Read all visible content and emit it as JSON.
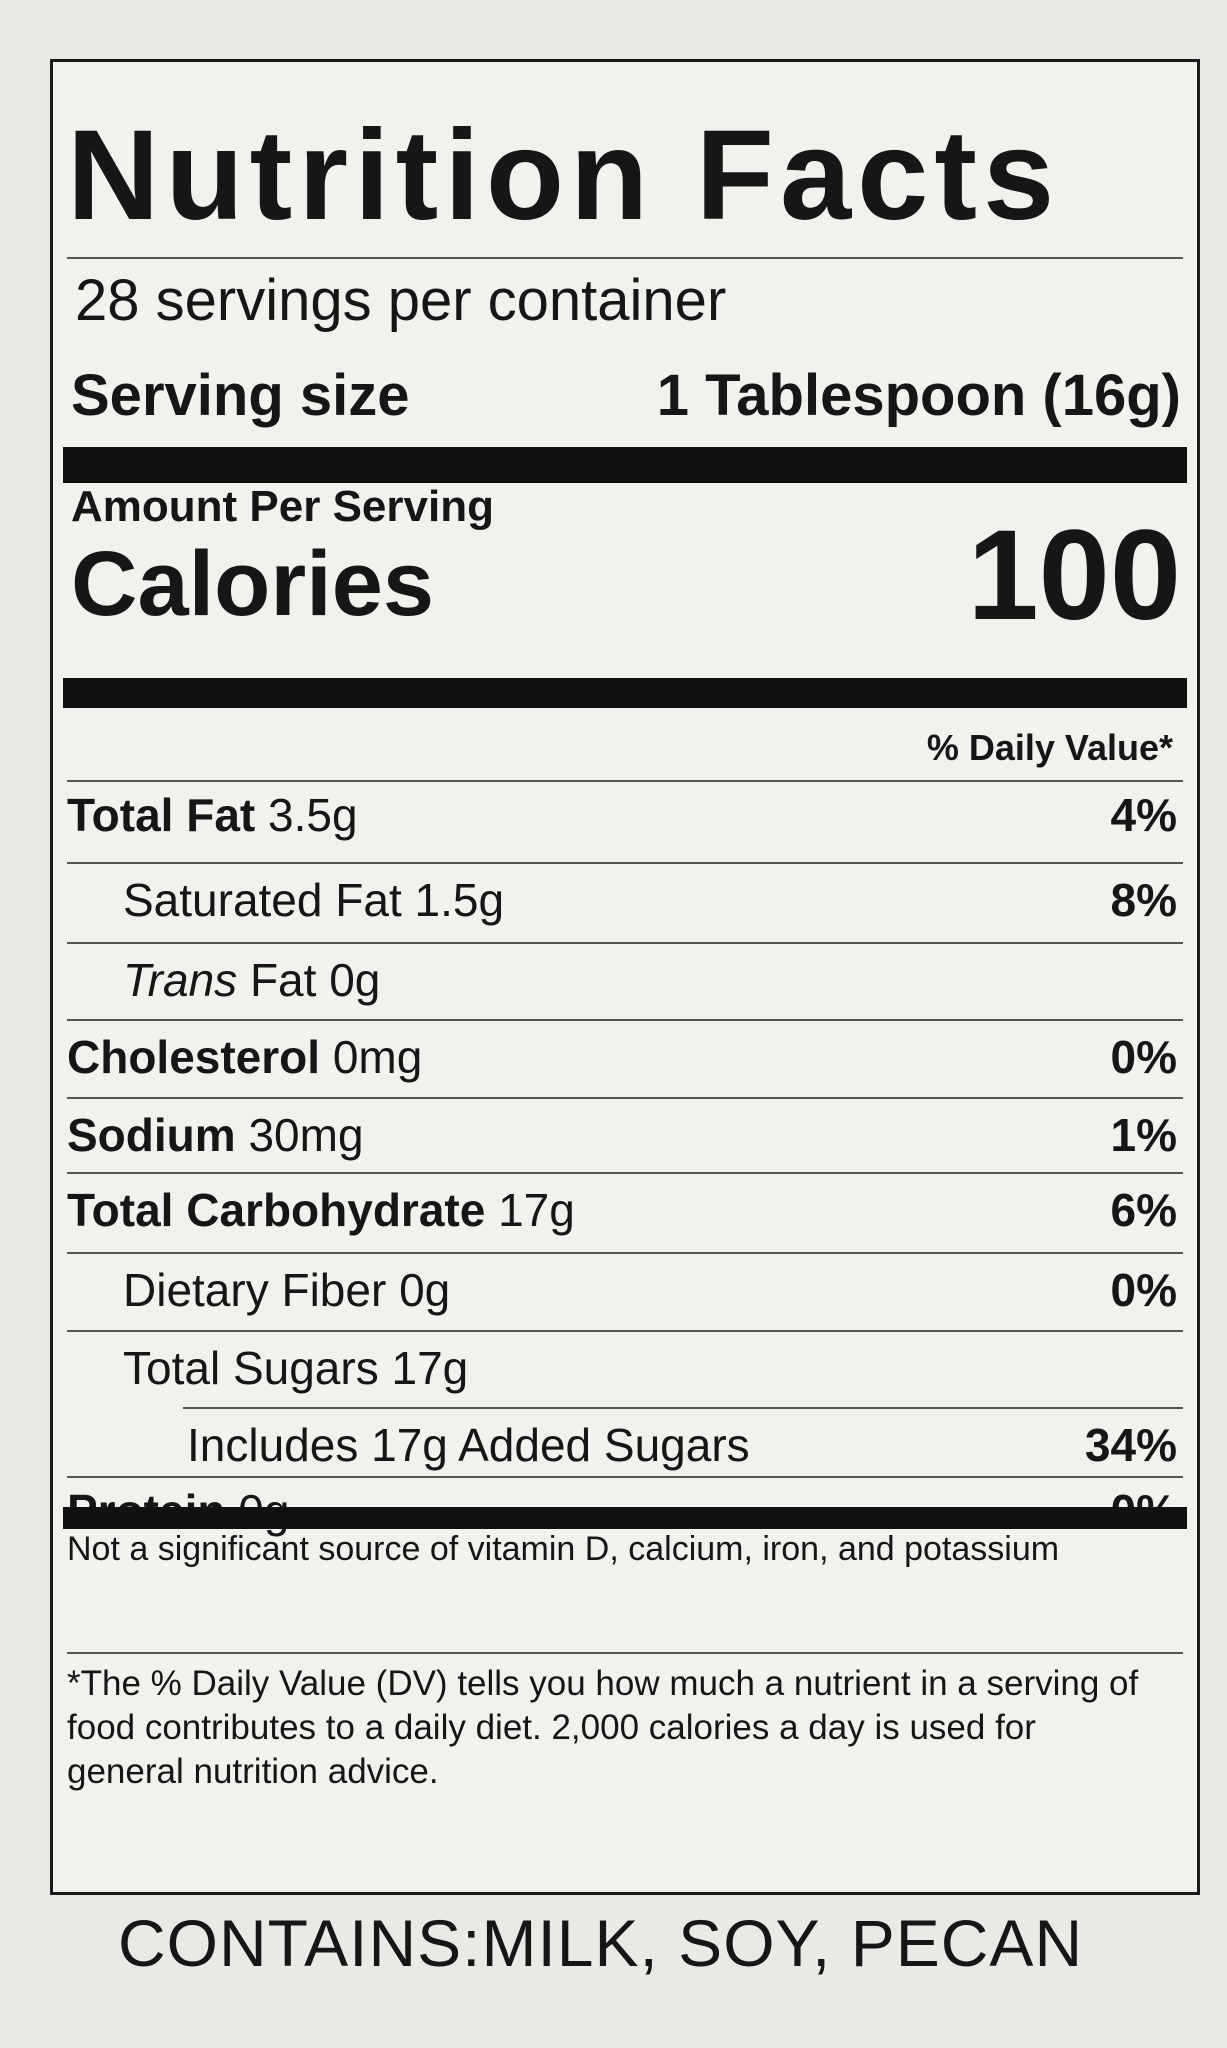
{
  "title": "Nutrition Facts",
  "servings_per_container": "28 servings per container",
  "serving_size": {
    "label": "Serving size",
    "value": "1 Tablespoon (16g)"
  },
  "amount_per_serving": "Amount Per Serving",
  "calories": {
    "label": "Calories",
    "value": "100"
  },
  "daily_value_header": "% Daily Value*",
  "nutrients": [
    {
      "name": "Total Fat",
      "amount": "3.5g",
      "dv": "4%"
    },
    {
      "name": "Saturated Fat",
      "amount": "1.5g",
      "dv": "8%"
    },
    {
      "name": "Trans",
      "name_suffix": "Fat",
      "amount": "0g",
      "dv": ""
    },
    {
      "name": "Cholesterol",
      "amount": "0mg",
      "dv": "0%"
    },
    {
      "name": "Sodium",
      "amount": "30mg",
      "dv": "1%"
    },
    {
      "name": "Total Carbohydrate",
      "amount": "17g",
      "dv": "6%"
    },
    {
      "name": "Dietary Fiber",
      "amount": "0g",
      "dv": "0%"
    },
    {
      "name": "Total Sugars",
      "amount": "17g",
      "dv": ""
    },
    {
      "name": "Includes 17g Added Sugars",
      "amount": "",
      "dv": "34%"
    },
    {
      "name": "Protein",
      "amount": "0g",
      "dv": "0%"
    }
  ],
  "not_significant": "Not a significant source of vitamin D, calcium, iron, and potassium",
  "dv_footnote": "*The % Daily Value (DV) tells you how much a nutrient in a serving of food contributes to a daily diet. 2,000 calories a day is used for general nutrition advice.",
  "contains": "CONTAINS:MILK, SOY, PECAN"
}
